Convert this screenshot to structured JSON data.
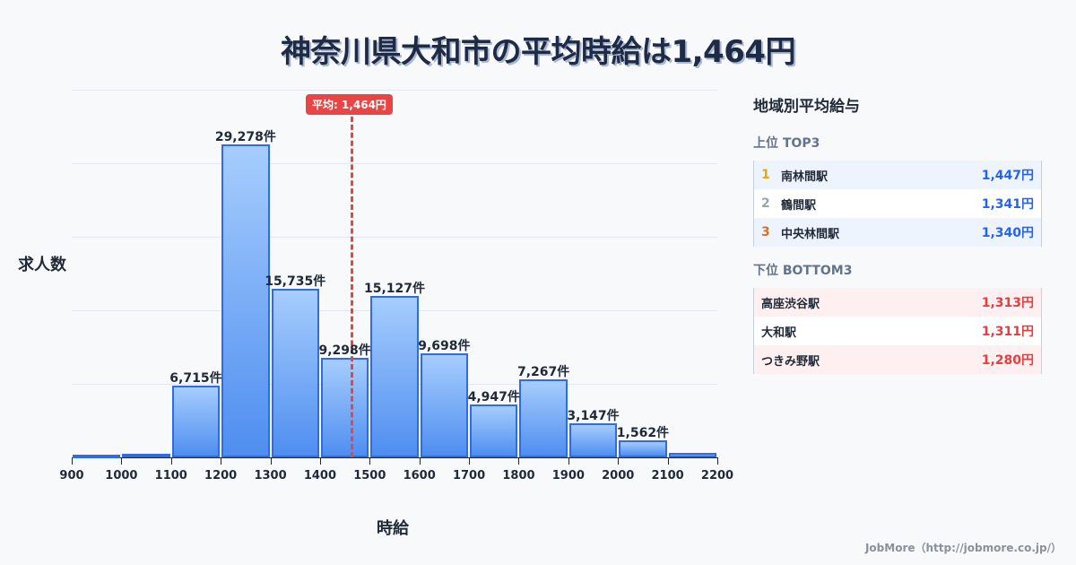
{
  "title": "神奈川県大和市の平均時給は1,464円",
  "chart_data": {
    "type": "bar",
    "title": "神奈川県大和市の平均時給は1,464円",
    "xlabel": "時給",
    "ylabel": "求人数",
    "bin_edges": [
      900,
      1000,
      1100,
      1200,
      1300,
      1400,
      1500,
      1600,
      1700,
      1800,
      1900,
      2000,
      2100,
      2200
    ],
    "categories": [
      "900-1000",
      "1000-1100",
      "1100-1200",
      "1200-1300",
      "1300-1400",
      "1400-1500",
      "1500-1600",
      "1600-1700",
      "1700-1800",
      "1800-1900",
      "1900-2000",
      "2000-2100",
      "2100-2200"
    ],
    "values": [
      150,
      300,
      6715,
      29278,
      15735,
      9298,
      15127,
      9698,
      4947,
      7267,
      3147,
      1562,
      400
    ],
    "value_labels": [
      "",
      "",
      "6,715件",
      "29,278件",
      "15,735件",
      "9,298件",
      "15,127件",
      "9,698件",
      "4,947件",
      "7,267件",
      "3,147件",
      "1,562件",
      ""
    ],
    "xticks": [
      "900",
      "1000",
      "1100",
      "1200",
      "1300",
      "1400",
      "1500",
      "1600",
      "1700",
      "1800",
      "1900",
      "2000",
      "2100",
      "2200"
    ],
    "xlim": [
      900,
      2200
    ],
    "ylim": [
      0,
      34000
    ],
    "grid": true,
    "annotations": [
      {
        "type": "vline",
        "x": 1464,
        "label": "平均: 1,464円",
        "color": "#e94545"
      }
    ],
    "bar_color": "#4f8ef0"
  },
  "sidebar": {
    "title": "地域別平均給与",
    "top": {
      "title": "上位 TOP3",
      "items": [
        {
          "rank": "1",
          "name": "南林間駅",
          "value": "1,447円",
          "rank_color": "#e6a800"
        },
        {
          "rank": "2",
          "name": "鶴間駅",
          "value": "1,341円",
          "rank_color": "#9aa3ae"
        },
        {
          "rank": "3",
          "name": "中央林間駅",
          "value": "1,340円",
          "rank_color": "#d0762a"
        }
      ]
    },
    "bottom": {
      "title": "下位 BOTTOM3",
      "items": [
        {
          "name": "高座渋谷駅",
          "value": "1,313円"
        },
        {
          "name": "大和駅",
          "value": "1,311円"
        },
        {
          "name": "つきみ野駅",
          "value": "1,280円"
        }
      ]
    }
  },
  "footer": "JobMore（http://jobmore.co.jp/）"
}
